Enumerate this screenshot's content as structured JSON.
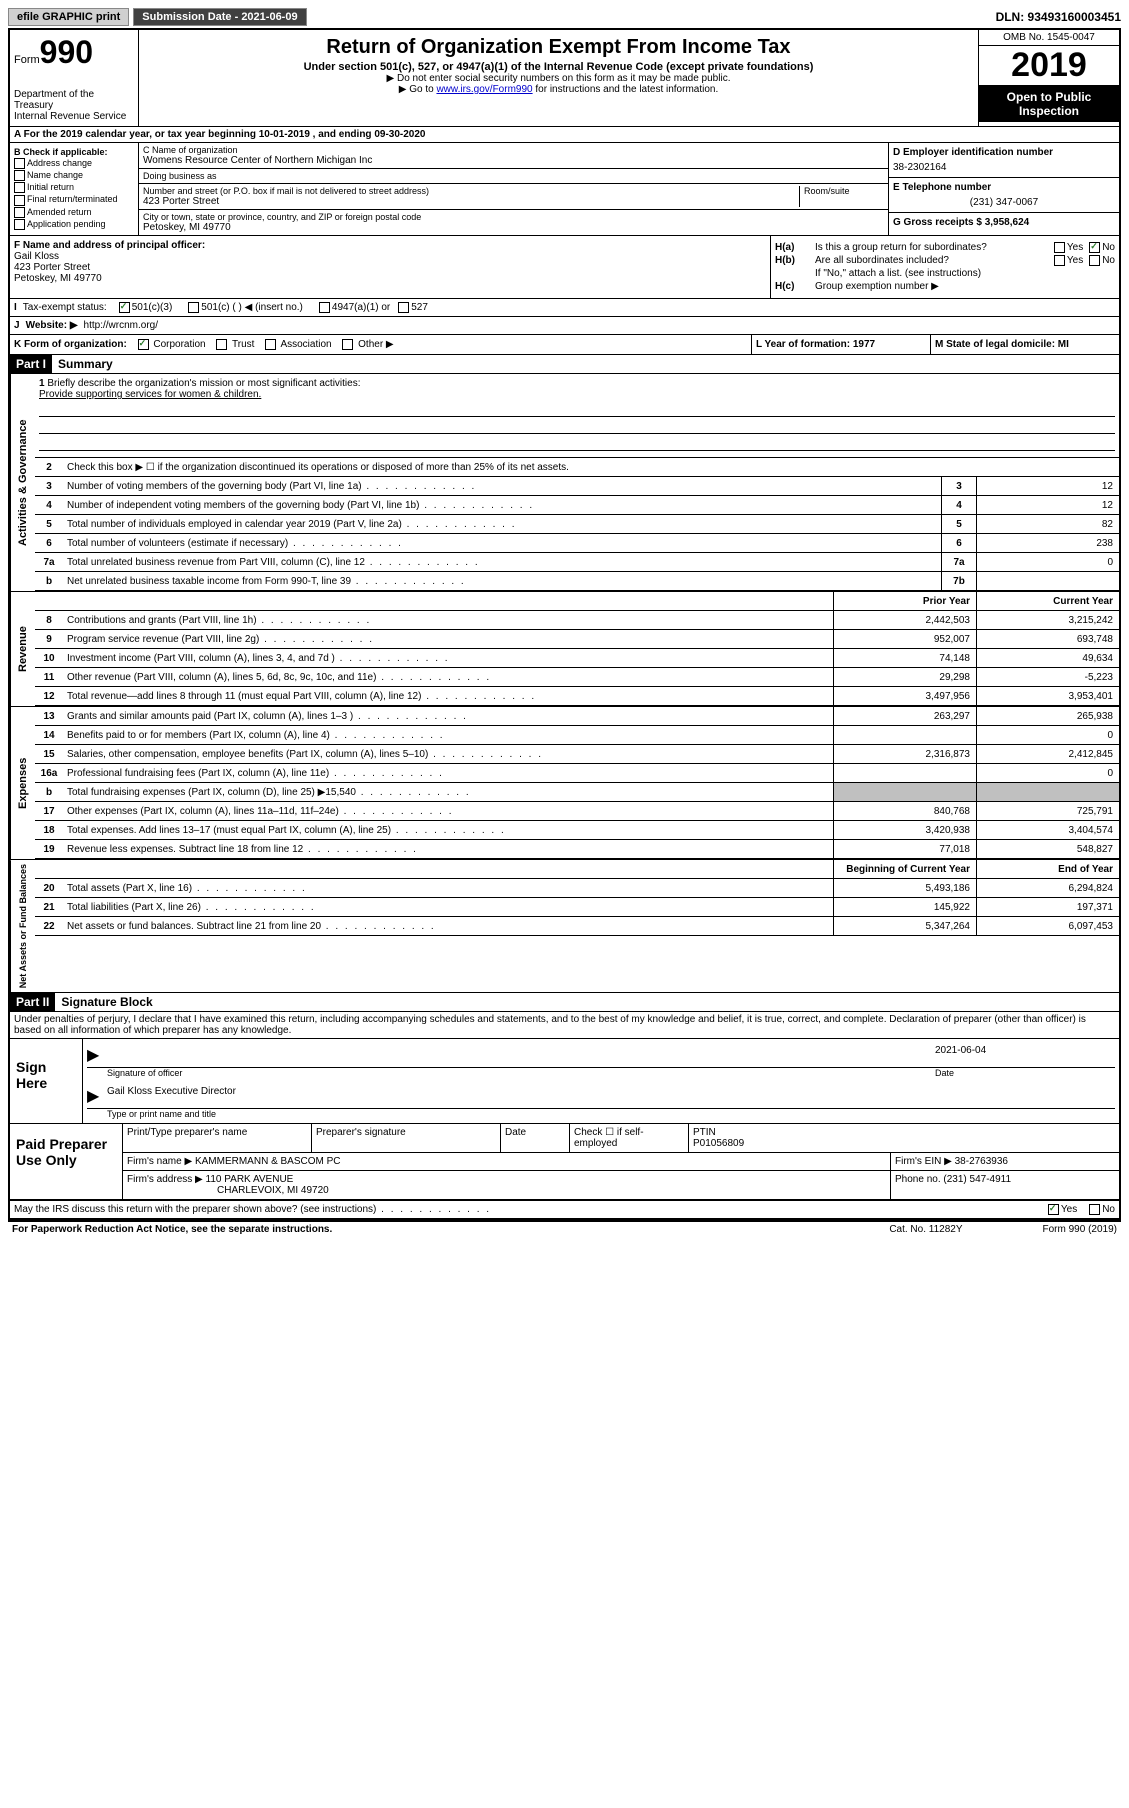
{
  "topbar": {
    "efile": "efile GRAPHIC print",
    "submission_label": "Submission Date - 2021-06-09",
    "dln_label": "DLN: 93493160003451"
  },
  "header": {
    "form_prefix": "Form",
    "form_number": "990",
    "dept": "Department of the Treasury\nInternal Revenue Service",
    "title": "Return of Organization Exempt From Income Tax",
    "subtitle": "Under section 501(c), 527, or 4947(a)(1) of the Internal Revenue Code (except private foundations)",
    "note1": "▶ Do not enter social security numbers on this form as it may be made public.",
    "note2_prefix": "▶ Go to ",
    "note2_link": "www.irs.gov/Form990",
    "note2_suffix": " for instructions and the latest information.",
    "omb": "OMB No. 1545-0047",
    "year": "2019",
    "inspection": "Open to Public Inspection"
  },
  "row_a": "A  For the 2019 calendar year, or tax year beginning 10-01-2019   , and ending 09-30-2020",
  "section_b": {
    "label": "B Check if applicable:",
    "items": [
      "Address change",
      "Name change",
      "Initial return",
      "Final return/terminated",
      "Amended return",
      "Application pending"
    ]
  },
  "section_c": {
    "name_label": "C Name of organization",
    "name": "Womens Resource Center of Northern Michigan Inc",
    "dba_label": "Doing business as",
    "dba": "",
    "street_label": "Number and street (or P.O. box if mail is not delivered to street address)",
    "street": "423 Porter Street",
    "room_label": "Room/suite",
    "city_label": "City or town, state or province, country, and ZIP or foreign postal code",
    "city": "Petoskey, MI  49770"
  },
  "section_d": {
    "ein_label": "D Employer identification number",
    "ein": "38-2302164",
    "phone_label": "E Telephone number",
    "phone": "(231) 347-0067",
    "gross_label": "G Gross receipts $ 3,958,624"
  },
  "section_f": {
    "label": "F Name and address of principal officer:",
    "name": "Gail Kloss",
    "street": "423 Porter Street",
    "city": "Petoskey, MI  49770"
  },
  "section_h": {
    "ha_label": "H(a)",
    "ha_text": "Is this a group return for subordinates?",
    "hb_label": "H(b)",
    "hb_text": "Are all subordinates included?",
    "hb_note": "If \"No,\" attach a list. (see instructions)",
    "hc_label": "H(c)",
    "hc_text": "Group exemption number ▶",
    "yes": "Yes",
    "no": "No"
  },
  "row_i": {
    "label": "I",
    "text": "Tax-exempt status:",
    "opt1": "501(c)(3)",
    "opt2": "501(c) (   ) ◀ (insert no.)",
    "opt3": "4947(a)(1) or",
    "opt4": "527"
  },
  "row_j": {
    "label": "J",
    "text": "Website: ▶",
    "url": "http://wrcnm.org/"
  },
  "row_k": {
    "label": "K Form of organization:",
    "corp": "Corporation",
    "trust": "Trust",
    "assoc": "Association",
    "other": "Other ▶"
  },
  "row_l": {
    "label": "L Year of formation: 1977"
  },
  "row_m": {
    "label": "M State of legal domicile: MI"
  },
  "part1": {
    "header": "Part I",
    "title": "Summary"
  },
  "mission": {
    "num": "1",
    "label": "Briefly describe the organization's mission or most significant activities:",
    "text": "Provide supporting services for women & children."
  },
  "line2": {
    "num": "2",
    "text": "Check this box ▶ ☐  if the organization discontinued its operations or disposed of more than 25% of its net assets."
  },
  "activities_label": "Activities & Governance",
  "revenue_label": "Revenue",
  "expenses_label": "Expenses",
  "netassets_label": "Net Assets or Fund Balances",
  "col_prior": "Prior Year",
  "col_current": "Current Year",
  "col_begin": "Beginning of Current Year",
  "col_end": "End of Year",
  "lines_governance": [
    {
      "num": "3",
      "desc": "Number of voting members of the governing body (Part VI, line 1a)",
      "box": "3",
      "val": "12"
    },
    {
      "num": "4",
      "desc": "Number of independent voting members of the governing body (Part VI, line 1b)",
      "box": "4",
      "val": "12"
    },
    {
      "num": "5",
      "desc": "Total number of individuals employed in calendar year 2019 (Part V, line 2a)",
      "box": "5",
      "val": "82"
    },
    {
      "num": "6",
      "desc": "Total number of volunteers (estimate if necessary)",
      "box": "6",
      "val": "238"
    },
    {
      "num": "7a",
      "desc": "Total unrelated business revenue from Part VIII, column (C), line 12",
      "box": "7a",
      "val": "0"
    },
    {
      "num": "b",
      "desc": "Net unrelated business taxable income from Form 990-T, line 39",
      "box": "7b",
      "val": ""
    }
  ],
  "lines_revenue": [
    {
      "num": "8",
      "desc": "Contributions and grants (Part VIII, line 1h)",
      "prior": "2,442,503",
      "current": "3,215,242"
    },
    {
      "num": "9",
      "desc": "Program service revenue (Part VIII, line 2g)",
      "prior": "952,007",
      "current": "693,748"
    },
    {
      "num": "10",
      "desc": "Investment income (Part VIII, column (A), lines 3, 4, and 7d )",
      "prior": "74,148",
      "current": "49,634"
    },
    {
      "num": "11",
      "desc": "Other revenue (Part VIII, column (A), lines 5, 6d, 8c, 9c, 10c, and 11e)",
      "prior": "29,298",
      "current": "-5,223"
    },
    {
      "num": "12",
      "desc": "Total revenue—add lines 8 through 11 (must equal Part VIII, column (A), line 12)",
      "prior": "3,497,956",
      "current": "3,953,401"
    }
  ],
  "lines_expenses": [
    {
      "num": "13",
      "desc": "Grants and similar amounts paid (Part IX, column (A), lines 1–3 )",
      "prior": "263,297",
      "current": "265,938"
    },
    {
      "num": "14",
      "desc": "Benefits paid to or for members (Part IX, column (A), line 4)",
      "prior": "",
      "current": "0"
    },
    {
      "num": "15",
      "desc": "Salaries, other compensation, employee benefits (Part IX, column (A), lines 5–10)",
      "prior": "2,316,873",
      "current": "2,412,845"
    },
    {
      "num": "16a",
      "desc": "Professional fundraising fees (Part IX, column (A), line 11e)",
      "prior": "",
      "current": "0"
    },
    {
      "num": "b",
      "desc": "Total fundraising expenses (Part IX, column (D), line 25) ▶15,540",
      "prior": "gray",
      "current": "gray"
    },
    {
      "num": "17",
      "desc": "Other expenses (Part IX, column (A), lines 11a–11d, 11f–24e)",
      "prior": "840,768",
      "current": "725,791"
    },
    {
      "num": "18",
      "desc": "Total expenses. Add lines 13–17 (must equal Part IX, column (A), line 25)",
      "prior": "3,420,938",
      "current": "3,404,574"
    },
    {
      "num": "19",
      "desc": "Revenue less expenses. Subtract line 18 from line 12",
      "prior": "77,018",
      "current": "548,827"
    }
  ],
  "lines_netassets": [
    {
      "num": "20",
      "desc": "Total assets (Part X, line 16)",
      "prior": "5,493,186",
      "current": "6,294,824"
    },
    {
      "num": "21",
      "desc": "Total liabilities (Part X, line 26)",
      "prior": "145,922",
      "current": "197,371"
    },
    {
      "num": "22",
      "desc": "Net assets or fund balances. Subtract line 21 from line 20",
      "prior": "5,347,264",
      "current": "6,097,453"
    }
  ],
  "part2": {
    "header": "Part II",
    "title": "Signature Block"
  },
  "perjury": "Under penalties of perjury, I declare that I have examined this return, including accompanying schedules and statements, and to the best of my knowledge and belief, it is true, correct, and complete. Declaration of preparer (other than officer) is based on all information of which preparer has any knowledge.",
  "sign": {
    "label": "Sign Here",
    "sig_label": "Signature of officer",
    "date_label": "Date",
    "date": "2021-06-04",
    "name": "Gail Kloss  Executive Director",
    "name_label": "Type or print name and title"
  },
  "paid": {
    "label": "Paid Preparer Use Only",
    "print_label": "Print/Type preparer's name",
    "sig_label": "Preparer's signature",
    "date_label": "Date",
    "check_label": "Check ☐ if self-employed",
    "ptin_label": "PTIN",
    "ptin": "P01056809",
    "firm_name_label": "Firm's name    ▶",
    "firm_name": "KAMMERMANN & BASCOM PC",
    "firm_ein_label": "Firm's EIN ▶",
    "firm_ein": "38-2763936",
    "firm_addr_label": "Firm's address ▶",
    "firm_addr": "110 PARK AVENUE",
    "firm_city": "CHARLEVOIX, MI  49720",
    "phone_label": "Phone no.",
    "phone": "(231) 547-4911"
  },
  "discuss": {
    "text": "May the IRS discuss this return with the preparer shown above? (see instructions)",
    "yes": "Yes",
    "no": "No"
  },
  "footer": {
    "left": "For Paperwork Reduction Act Notice, see the separate instructions.",
    "center": "Cat. No. 11282Y",
    "right": "Form 990 (2019)"
  }
}
